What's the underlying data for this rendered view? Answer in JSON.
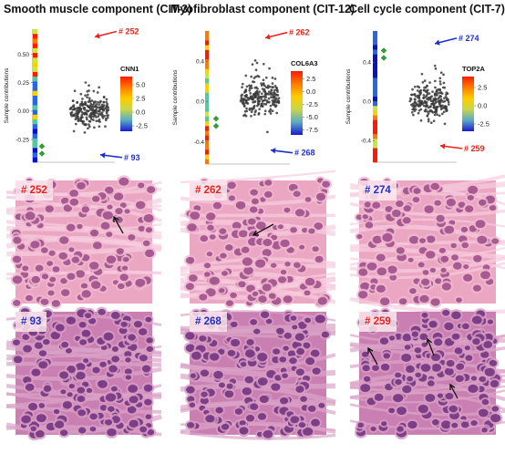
{
  "titles": [
    "Smooth muscle component (CIT-3)",
    "Myofibroblast component (CIT-12)",
    "Cell cycle component (CIT-7)"
  ],
  "chart_data": [
    {
      "type": "scatter",
      "title": "Smooth muscle component (CIT-3)",
      "ylabel": "Sample contributions",
      "ylim": [
        -0.45,
        0.72
      ],
      "yticks": [
        "0.50",
        "0.25",
        "0.00",
        "-0.25"
      ],
      "ytick_values": [
        0.5,
        0.25,
        0.0,
        -0.25
      ],
      "colorbar": {
        "gene": "CNN1",
        "ticks": [
          "5.0",
          "2.5",
          "0.0",
          "-2.5"
        ],
        "min": -3.5,
        "max": 6.5
      },
      "callouts": [
        {
          "label": "# 252",
          "value": 0.66,
          "color": "#e8231b"
        },
        {
          "label": "# 93",
          "value": -0.4,
          "color": "#1f2fcf"
        }
      ],
      "green_marker_value": -0.31
    },
    {
      "type": "scatter",
      "title": "Myofibroblast component (CIT-12)",
      "ylabel": "Sample contributions",
      "ylim": [
        -0.62,
        0.7
      ],
      "yticks": [
        "0.4",
        "0.0",
        "-0.4"
      ],
      "ytick_values": [
        0.4,
        0.0,
        -0.4
      ],
      "colorbar": {
        "gene": "COL6A3",
        "ticks": [
          "2.5",
          "0.0",
          "-2.5",
          "-5.0",
          "-7.5"
        ],
        "min": -8.5,
        "max": 4
      },
      "callouts": [
        {
          "label": "# 262",
          "value": 0.64,
          "color": "#e8231b"
        },
        {
          "label": "# 268",
          "value": -0.5,
          "color": "#1f2fcf"
        }
      ],
      "green_marker_value": -0.17
    },
    {
      "type": "scatter",
      "title": "Cell cycle component (CIT-7)",
      "ylabel": "Sample contributions",
      "ylim": [
        -0.62,
        0.72
      ],
      "yticks": [
        "0.4",
        "0.0",
        "-0.4"
      ],
      "ytick_values": [
        0.4,
        0.0,
        -0.4
      ],
      "colorbar": {
        "gene": "TOP2A",
        "ticks": [
          "2.5",
          "0.0",
          "-2.5"
        ],
        "min": -3.5,
        "max": 4
      },
      "callouts": [
        {
          "label": "# 274",
          "value": 0.6,
          "color": "#1f2fcf"
        },
        {
          "label": "# 259",
          "value": -0.47,
          "color": "#e8231b"
        }
      ],
      "green_marker_value": 0.52
    }
  ],
  "tiles": [
    {
      "label": "# 252",
      "color": "#e8231b",
      "tissue": "pink",
      "arrows": 1
    },
    {
      "label": "# 262",
      "color": "#e8231b",
      "tissue": "pink",
      "arrows": 1
    },
    {
      "label": "# 274",
      "color": "#1f2fcf",
      "tissue": "pink",
      "arrows": 0
    },
    {
      "label": "# 93",
      "color": "#1f2fcf",
      "tissue": "purple",
      "arrows": 0
    },
    {
      "label": "# 268",
      "color": "#1f2fcf",
      "tissue": "purple",
      "arrows": 0
    },
    {
      "label": "# 259",
      "color": "#e8231b",
      "tissue": "purple",
      "arrows": 3
    }
  ]
}
